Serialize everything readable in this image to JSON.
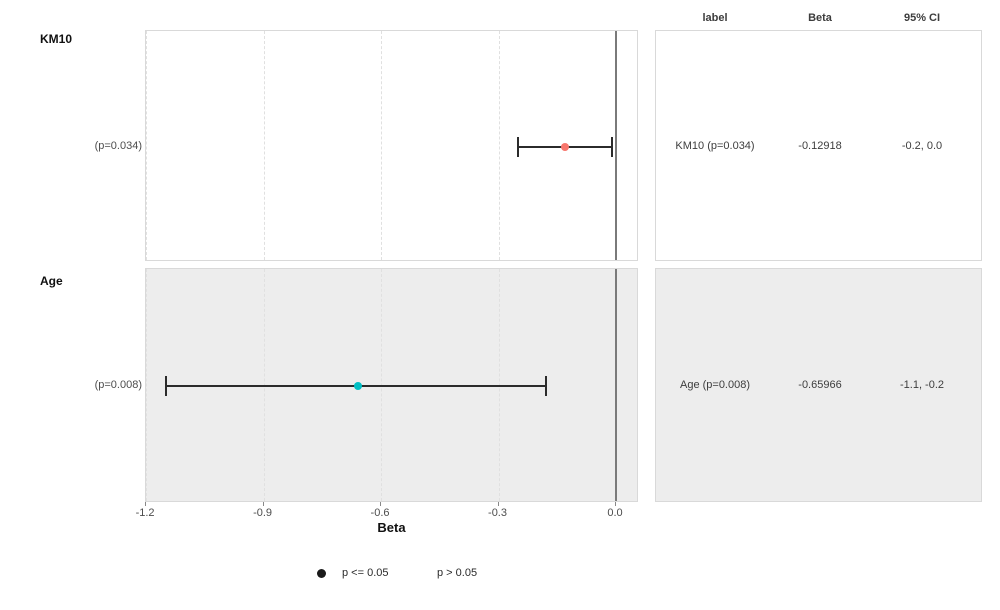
{
  "chart_data": {
    "type": "scatter",
    "subtype": "forest-plot",
    "title": "",
    "xlabel": "Beta",
    "xlim": [
      -1.205,
      0.055
    ],
    "x_ticks": [
      "-1.2",
      "-0.9",
      "-0.6",
      "-0.3",
      "0.0"
    ],
    "x_tick_values": [
      -1.2,
      -0.9,
      -0.6,
      -0.3,
      0.0
    ],
    "reference_line_x": 0,
    "grid": "dashed-vertical-major",
    "rows": [
      {
        "group": "KM10",
        "row_label": "(p=0.034)",
        "beta": -0.12918,
        "ci_low": -0.25,
        "ci_high": -0.01,
        "p_value": 0.034,
        "point_color": "#F8766D",
        "panel_fill": "#ffffff",
        "table": {
          "label": "KM10 (p=0.034)",
          "beta": "-0.12918",
          "ci": "-0.2, 0.0"
        }
      },
      {
        "group": "Age",
        "row_label": "(p=0.008)",
        "beta": -0.65966,
        "ci_low": -1.15,
        "ci_high": -0.18,
        "p_value": 0.008,
        "point_color": "#00BFC4",
        "panel_fill": "#ededed",
        "table": {
          "label": "Age (p=0.008)",
          "beta": "-0.65966",
          "ci": "-1.1, -0.2"
        }
      }
    ],
    "table_headers": {
      "label": "label",
      "beta": "Beta",
      "ci": "95% CI"
    },
    "legend": [
      {
        "label": "p <= 0.05",
        "marker": "filled-circle",
        "marker_color": "#1a1a1a"
      },
      {
        "label": "p > 0.05",
        "marker": "none"
      }
    ],
    "legend_position": "bottom"
  },
  "colors": {
    "point_significant_row1": "#F8766D",
    "point_significant_row2": "#00BFC4",
    "panel_stripe": "#ededed",
    "panel_border": "#d9d9d9",
    "grid_line": "#e0e0e0",
    "zero_line": "#7a7a7a",
    "errorbar": "#2b2b2b",
    "text_dark": "#111111",
    "text_gray": "#4d4d4d"
  }
}
